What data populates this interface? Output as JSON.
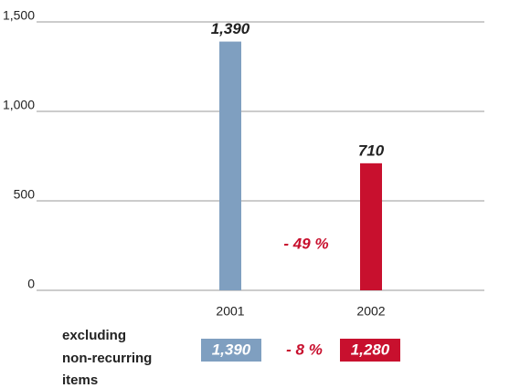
{
  "chart_data": {
    "type": "bar",
    "categories": [
      "2001",
      "2002"
    ],
    "series": [
      {
        "name": "2001",
        "color": "#7f9fc0"
      },
      {
        "name": "2002",
        "color": "#c8102e"
      }
    ],
    "values": [
      1390,
      710
    ],
    "value_labels": [
      "1,390",
      "710"
    ],
    "colors": [
      "#7f9fc0",
      "#c8102e"
    ],
    "ylim": [
      0,
      1500
    ],
    "yticks": [
      0,
      500,
      {
        "value": 1000,
        "label": "1,000"
      },
      {
        "value": 1500,
        "label": "1,500"
      }
    ],
    "grid": true,
    "annotation": "- 49 %",
    "comparison": {
      "label": [
        "excluding",
        "non-recurring",
        "items"
      ],
      "values": [
        1390,
        1280
      ],
      "value_labels": [
        "1,390",
        "1,280"
      ],
      "change": "- 8 %"
    }
  }
}
